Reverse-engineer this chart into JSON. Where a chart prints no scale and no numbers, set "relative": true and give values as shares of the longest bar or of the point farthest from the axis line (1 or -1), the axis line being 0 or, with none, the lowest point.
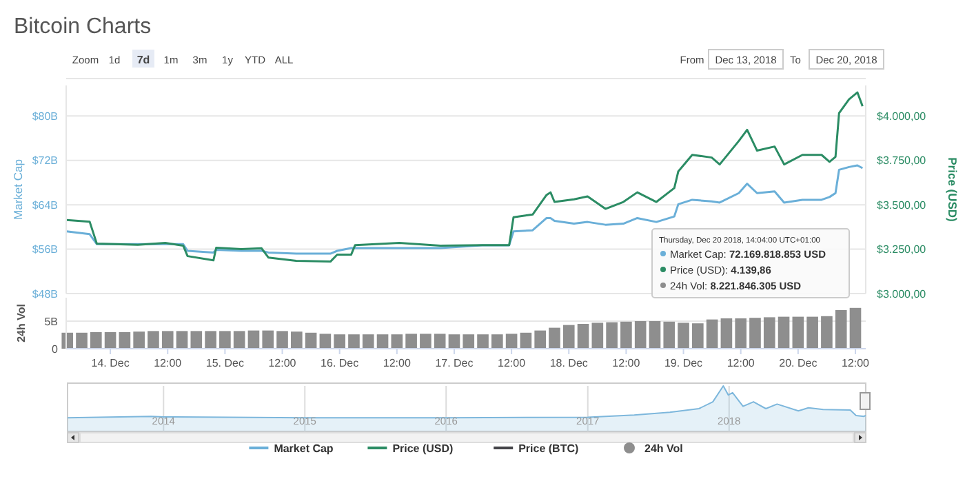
{
  "chart_data": [
    {
      "type": "line",
      "title": "Bitcoin Charts",
      "ylabel": "Market Cap",
      "y2label": "Price (USD)",
      "xlim": [
        "2018-12-13T14:45",
        "2018-12-20T14:10"
      ],
      "ylim": [
        48,
        85.5
      ],
      "yticks": [
        {
          "value": 48,
          "label": "$48B"
        },
        {
          "value": 56,
          "label": "$56B"
        },
        {
          "value": 64,
          "label": "$64B"
        },
        {
          "value": 72,
          "label": "$72B"
        },
        {
          "value": 80,
          "label": "$80B"
        }
      ],
      "y2lim": [
        3000,
        4172
      ],
      "y2ticks": [
        {
          "value": 3000,
          "label": "$3.000,00"
        },
        {
          "value": 3250,
          "label": "$3.250,00"
        },
        {
          "value": 3500,
          "label": "$3.500,00"
        },
        {
          "value": 3750,
          "label": "$3.750,00"
        },
        {
          "value": 4000,
          "label": "$4.000,00"
        }
      ],
      "grid": "y",
      "tick_labels": "y",
      "legend": "bottom",
      "annotations": [
        "Zoom",
        "1d",
        "7d",
        "1m",
        "3m",
        "1y",
        "YTD",
        "ALL",
        "From",
        "Dec 13, 2018",
        "To",
        "Dec 20, 2018",
        "Thursday, Dec 20 2018, 14:04:00 UTC+01:00",
        "Market Cap: 72.169.818.853 USD",
        "Price (USD): 4.139,86",
        "24h Vol: 8.221.846.305 USD"
      ],
      "series": [
        {
          "name": "Market Cap",
          "color": "#6aafd8",
          "x": [
            "2018-12-13T14:50",
            "2018-12-13T19:40",
            "2018-12-13T21:10",
            "2018-12-14T05:45",
            "2018-12-14T11:30",
            "2018-12-14T15:15",
            "2018-12-14T16:10",
            "2018-12-14T21:35",
            "2018-12-14T22:10",
            "2018-12-15T03:25",
            "2018-12-15T07:40",
            "2018-12-15T09:05",
            "2018-12-15T14:55",
            "2018-12-15T22:05",
            "2018-12-15T23:30",
            "2018-12-16T02:25",
            "2018-12-16T03:15",
            "2018-12-16T12:30",
            "2018-12-16T21:05",
            "2018-12-17T05:50",
            "2018-12-17T11:30",
            "2018-12-17T12:25",
            "2018-12-17T16:25",
            "2018-12-17T19:20",
            "2018-12-17T20:10",
            "2018-12-17T21:00",
            "2018-12-18T01:05",
            "2018-12-18T03:55",
            "2018-12-18T07:40",
            "2018-12-18T11:25",
            "2018-12-18T14:20",
            "2018-12-18T18:20",
            "2018-12-18T22:05",
            "2018-12-18T22:55",
            "2018-12-19T01:50",
            "2018-12-19T05:55",
            "2018-12-19T07:35",
            "2018-12-19T11:35",
            "2018-12-19T13:20",
            "2018-12-19T15:25",
            "2018-12-19T19:05",
            "2018-12-19T21:05",
            "2018-12-20T00:55",
            "2018-12-20T04:55",
            "2018-12-20T06:35",
            "2018-12-20T07:50",
            "2018-12-20T08:35",
            "2018-12-20T10:40",
            "2018-12-20T12:25",
            "2018-12-20T13:30"
          ],
          "values": [
            59.2,
            58.7,
            56.9,
            56.9,
            56.9,
            56.9,
            55.7,
            55.4,
            55.9,
            55.7,
            55.7,
            55.4,
            55.2,
            55.2,
            55.7,
            56.2,
            56.2,
            56.2,
            56.2,
            56.7,
            56.7,
            59.2,
            59.4,
            61.6,
            61.6,
            61.1,
            60.6,
            60.9,
            60.4,
            60.6,
            61.6,
            60.9,
            61.9,
            64.1,
            64.9,
            64.6,
            64.4,
            66.1,
            67.8,
            66.1,
            66.4,
            64.4,
            64.9,
            64.9,
            65.4,
            66.1,
            70.3,
            70.8,
            71.1,
            70.6
          ]
        },
        {
          "name": "Price (USD)",
          "color": "#2b8c64",
          "axis": "y2",
          "x": [
            "2018-12-13T14:50",
            "2018-12-13T19:40",
            "2018-12-13T21:10",
            "2018-12-14T05:45",
            "2018-12-14T11:30",
            "2018-12-14T15:15",
            "2018-12-14T16:10",
            "2018-12-14T21:35",
            "2018-12-14T22:10",
            "2018-12-15T03:25",
            "2018-12-15T07:40",
            "2018-12-15T09:05",
            "2018-12-15T14:55",
            "2018-12-15T22:05",
            "2018-12-15T23:30",
            "2018-12-16T02:25",
            "2018-12-16T03:15",
            "2018-12-16T12:30",
            "2018-12-16T21:05",
            "2018-12-17T05:50",
            "2018-12-17T11:30",
            "2018-12-17T12:25",
            "2018-12-17T16:25",
            "2018-12-17T19:20",
            "2018-12-17T20:10",
            "2018-12-17T21:00",
            "2018-12-18T01:05",
            "2018-12-18T03:55",
            "2018-12-18T07:40",
            "2018-12-18T11:25",
            "2018-12-18T14:20",
            "2018-12-18T18:20",
            "2018-12-18T22:05",
            "2018-12-18T22:55",
            "2018-12-19T01:50",
            "2018-12-19T05:55",
            "2018-12-19T07:35",
            "2018-12-19T11:35",
            "2018-12-19T13:20",
            "2018-12-19T15:25",
            "2018-12-19T19:05",
            "2018-12-19T21:05",
            "2018-12-20T00:55",
            "2018-12-20T04:55",
            "2018-12-20T06:35",
            "2018-12-20T07:50",
            "2018-12-20T08:35",
            "2018-12-20T10:40",
            "2018-12-20T12:25",
            "2018-12-20T13:30"
          ],
          "values": [
            3414,
            3405,
            3281,
            3275,
            3285,
            3270,
            3211,
            3187,
            3258,
            3250,
            3255,
            3203,
            3184,
            3180,
            3219,
            3219,
            3273,
            3285,
            3270,
            3273,
            3273,
            3430,
            3445,
            3555,
            3570,
            3516,
            3531,
            3547,
            3477,
            3516,
            3570,
            3516,
            3594,
            3688,
            3781,
            3766,
            3727,
            3859,
            3922,
            3805,
            3828,
            3727,
            3781,
            3781,
            3742,
            3770,
            4016,
            4094,
            4133,
            4055
          ]
        },
        {
          "name": "Price (BTC)",
          "color": "#434348"
        }
      ]
    },
    {
      "type": "bar",
      "ylabel": "24h Vol",
      "xlim": [
        "2018-12-13T14:45",
        "2018-12-20T14:10"
      ],
      "ylim": [
        0,
        9.25
      ],
      "yticks": [
        0,
        {
          "value": 5,
          "label": "5B"
        }
      ],
      "xticks": [
        {
          "value": "2018-12-14T00:00",
          "label": "14. Dec"
        },
        {
          "value": "2018-12-14T12:00",
          "label": "12:00"
        },
        {
          "value": "2018-12-15T00:00",
          "label": "15. Dec"
        },
        {
          "value": "2018-12-15T12:00",
          "label": "12:00"
        },
        {
          "value": "2018-12-16T00:00",
          "label": "16. Dec"
        },
        {
          "value": "2018-12-16T12:00",
          "label": "12:00"
        },
        {
          "value": "2018-12-17T00:00",
          "label": "17. Dec"
        },
        {
          "value": "2018-12-17T12:00",
          "label": "12:00"
        },
        {
          "value": "2018-12-18T00:00",
          "label": "18. Dec"
        },
        {
          "value": "2018-12-18T12:00",
          "label": "12:00"
        },
        {
          "value": "2018-12-19T00:00",
          "label": "19. Dec"
        },
        {
          "value": "2018-12-19T12:00",
          "label": "12:00"
        },
        {
          "value": "2018-12-20T00:00",
          "label": "20. Dec"
        },
        {
          "value": "2018-12-20T12:00",
          "label": "12:00"
        }
      ],
      "grid": "y",
      "legend": "bottom",
      "series": [
        {
          "name": "24h Vol",
          "color": "#8e8e8e",
          "x": [
            "2018-12-13T15:00",
            "2018-12-13T18:00",
            "2018-12-13T21:00",
            "2018-12-14T00:00",
            "2018-12-14T03:00",
            "2018-12-14T06:00",
            "2018-12-14T09:00",
            "2018-12-14T12:00",
            "2018-12-14T15:00",
            "2018-12-14T18:00",
            "2018-12-14T21:00",
            "2018-12-15T00:00",
            "2018-12-15T03:00",
            "2018-12-15T06:00",
            "2018-12-15T09:00",
            "2018-12-15T12:00",
            "2018-12-15T15:00",
            "2018-12-15T18:00",
            "2018-12-15T21:00",
            "2018-12-16T00:00",
            "2018-12-16T03:00",
            "2018-12-16T06:00",
            "2018-12-16T09:00",
            "2018-12-16T12:00",
            "2018-12-16T15:00",
            "2018-12-16T18:00",
            "2018-12-16T21:00",
            "2018-12-17T00:00",
            "2018-12-17T03:00",
            "2018-12-17T06:00",
            "2018-12-17T09:00",
            "2018-12-17T12:00",
            "2018-12-17T15:00",
            "2018-12-17T18:00",
            "2018-12-17T21:00",
            "2018-12-18T00:00",
            "2018-12-18T03:00",
            "2018-12-18T06:00",
            "2018-12-18T09:00",
            "2018-12-18T12:00",
            "2018-12-18T15:00",
            "2018-12-18T18:00",
            "2018-12-18T21:00",
            "2018-12-19T00:00",
            "2018-12-19T03:00",
            "2018-12-19T06:00",
            "2018-12-19T09:00",
            "2018-12-19T12:00",
            "2018-12-19T15:00",
            "2018-12-19T18:00",
            "2018-12-19T21:00",
            "2018-12-20T00:00",
            "2018-12-20T03:00",
            "2018-12-20T06:00",
            "2018-12-20T09:00",
            "2018-12-20T12:00"
          ],
          "values": [
            2.9,
            2.9,
            3.0,
            3.0,
            3.0,
            3.1,
            3.2,
            3.2,
            3.2,
            3.2,
            3.2,
            3.2,
            3.2,
            3.3,
            3.3,
            3.2,
            3.1,
            2.9,
            2.7,
            2.6,
            2.6,
            2.6,
            2.6,
            2.6,
            2.7,
            2.7,
            2.7,
            2.6,
            2.6,
            2.6,
            2.6,
            2.7,
            2.9,
            3.3,
            3.8,
            4.3,
            4.5,
            4.7,
            4.8,
            4.9,
            5.0,
            5.0,
            4.9,
            4.7,
            4.6,
            5.3,
            5.5,
            5.5,
            5.6,
            5.7,
            5.8,
            5.8,
            5.8,
            5.9,
            7.0,
            7.4
          ]
        }
      ]
    },
    {
      "type": "area",
      "relative": true,
      "xlim": [
        "2013-04-28",
        "2018-12-20"
      ],
      "xticks": [
        {
          "value": "2014",
          "label": "2014"
        },
        {
          "value": "2015",
          "label": "2015"
        },
        {
          "value": "2016",
          "label": "2016"
        },
        {
          "value": "2017",
          "label": "2017"
        },
        {
          "value": "2018",
          "label": "2018"
        }
      ],
      "grid": "x",
      "color": "#7db7dc",
      "x": [
        "2013-04-28",
        "2013-11-30",
        "2014-01-01",
        "2015-01-01",
        "2016-01-01",
        "2017-01-01",
        "2017-05-01",
        "2017-08-01",
        "2017-10-15",
        "2017-11-20",
        "2017-12-17",
        "2017-12-30",
        "2018-01-10",
        "2018-02-06",
        "2018-03-05",
        "2018-04-06",
        "2018-05-05",
        "2018-06-29",
        "2018-07-25",
        "2018-09-01",
        "2018-11-10",
        "2018-11-25",
        "2018-12-15",
        "2018-12-20"
      ],
      "values": [
        0.3,
        0.33,
        0.32,
        0.3,
        0.3,
        0.31,
        0.36,
        0.42,
        0.5,
        0.65,
        1.0,
        0.8,
        0.85,
        0.55,
        0.65,
        0.5,
        0.6,
        0.45,
        0.52,
        0.48,
        0.47,
        0.35,
        0.33,
        0.35
      ]
    }
  ]
}
